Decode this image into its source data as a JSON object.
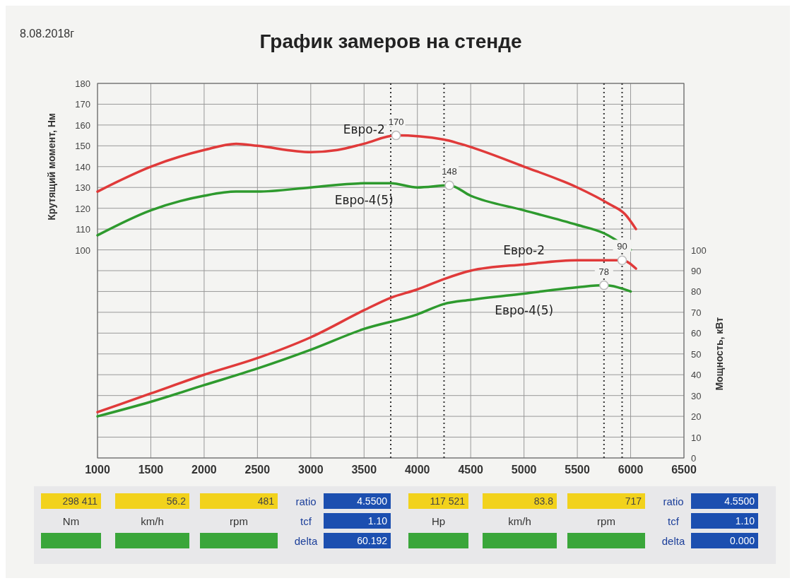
{
  "chart_data": {
    "type": "line",
    "title": "График замеров на стенде",
    "xlabel": null,
    "ylabel": "Крутящий момент, Нм",
    "y2label": "Мощность, кВт",
    "xlim": [
      1000,
      6500
    ],
    "xticks": [
      1000,
      1500,
      2000,
      2500,
      3000,
      3500,
      4000,
      4500,
      5000,
      5500,
      6000,
      6500
    ],
    "ylim": [
      0,
      180
    ],
    "yticks": [
      {
        "value": 0,
        "label": null
      },
      {
        "value": 10,
        "label": null
      },
      {
        "value": 20,
        "label": null
      },
      {
        "value": 30,
        "label": null
      },
      {
        "value": 40,
        "label": null
      },
      {
        "value": 50,
        "label": null
      },
      {
        "value": 60,
        "label": null
      },
      {
        "value": 70,
        "label": null
      },
      {
        "value": 80,
        "label": null
      },
      {
        "value": 90,
        "label": null
      },
      100,
      110,
      120,
      130,
      140,
      150,
      160,
      170,
      180
    ],
    "y2lim": [
      0,
      180
    ],
    "y2ticks": [
      0,
      10,
      20,
      30,
      40,
      50,
      60,
      70,
      80,
      90,
      100
    ],
    "grid": true,
    "line_style": "solid",
    "marker": "none",
    "series": [
      {
        "name": "Евро-2",
        "color": "#e03a3a",
        "x": [
          1000,
          1500,
          2000,
          2300,
          2500,
          3000,
          3250,
          3500,
          3800,
          4250,
          4400,
          5000,
          5500,
          5800,
          5950,
          6050
        ],
        "values": [
          128,
          140,
          148,
          151,
          150,
          147,
          148,
          151,
          155,
          153,
          151,
          140,
          130,
          122,
          117,
          110
        ]
      },
      {
        "name": "Евро-4(5)",
        "color": "#2e9a2e",
        "x": [
          1000,
          1500,
          2000,
          2300,
          2500,
          3000,
          3500,
          3750,
          4000,
          4300,
          4500,
          5000,
          5500,
          5750,
          6000
        ],
        "values": [
          107,
          119,
          126,
          128,
          128,
          130,
          132,
          132,
          130,
          131,
          126,
          119,
          112,
          108,
          100
        ]
      },
      {
        "name": "Евро-2",
        "color": "#e03a3a",
        "axis": "y2",
        "x": [
          1000,
          1500,
          2000,
          2500,
          3000,
          3500,
          3750,
          4000,
          4250,
          4500,
          5000,
          5500,
          5920,
          6050
        ],
        "values": [
          22,
          31,
          40,
          48,
          58,
          71,
          77,
          81,
          86,
          90,
          93,
          95,
          95,
          91
        ]
      },
      {
        "name": "Евро-4(5)",
        "color": "#2e9a2e",
        "axis": "y2",
        "x": [
          1000,
          1500,
          2000,
          2500,
          3000,
          3500,
          4000,
          4250,
          4500,
          5000,
          5500,
          5750,
          6000
        ],
        "values": [
          20,
          27,
          35,
          43,
          52,
          62,
          69,
          74,
          76,
          79,
          82,
          83,
          80
        ]
      }
    ],
    "ref_lines": [
      {
        "axis": "x",
        "value": 3750,
        "color": "#333333",
        "line_style": "dotted"
      },
      {
        "axis": "x",
        "value": 4250,
        "color": "#333333",
        "line_style": "dotted"
      },
      {
        "axis": "x",
        "value": 5750,
        "color": "#333333",
        "line_style": "dotted"
      },
      {
        "axis": "x",
        "value": 5920,
        "color": "#333333",
        "line_style": "dotted"
      }
    ],
    "annotations": [
      "8.08.2018г",
      {
        "text": "170",
        "x": 3800,
        "y": 155
      },
      {
        "text": "148",
        "x": 4300,
        "y": 131
      },
      {
        "text": "90",
        "x": 5920,
        "y": 95
      },
      {
        "text": "78",
        "x": 5750,
        "y": 83
      },
      "298 411",
      "56.2",
      "481",
      "ratio",
      "4.5500",
      "Nm",
      "km/h",
      "rpm",
      "tcf",
      "1.10",
      "delta",
      "60.192",
      "117 521",
      "83.8",
      "717",
      "ratio",
      "4.5500",
      "Hp",
      "km/h",
      "rpm",
      "tcf",
      "1.10",
      "delta",
      "0.000"
    ]
  }
}
